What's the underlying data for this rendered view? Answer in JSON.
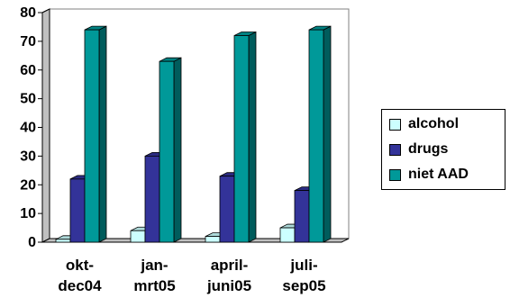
{
  "chart_data": {
    "type": "bar",
    "categories": [
      [
        "okt-",
        "dec04"
      ],
      [
        "jan-",
        "mrt05"
      ],
      [
        "april-",
        "juni05"
      ],
      [
        "juli-",
        "sep05"
      ]
    ],
    "series": [
      {
        "name": "alcohol",
        "values": [
          1,
          4,
          2,
          5
        ],
        "color": "#ccffff"
      },
      {
        "name": "drugs",
        "values": [
          22,
          30,
          23,
          18
        ],
        "color": "#333399"
      },
      {
        "name": "niet AAD",
        "values": [
          74,
          63,
          72,
          74
        ],
        "color": "#009999"
      }
    ],
    "ylim": [
      0,
      80
    ],
    "yticks": [
      "0",
      "10",
      "20",
      "30",
      "40",
      "50",
      "60",
      "70",
      "80"
    ],
    "grid": true,
    "legend_position": "right"
  }
}
